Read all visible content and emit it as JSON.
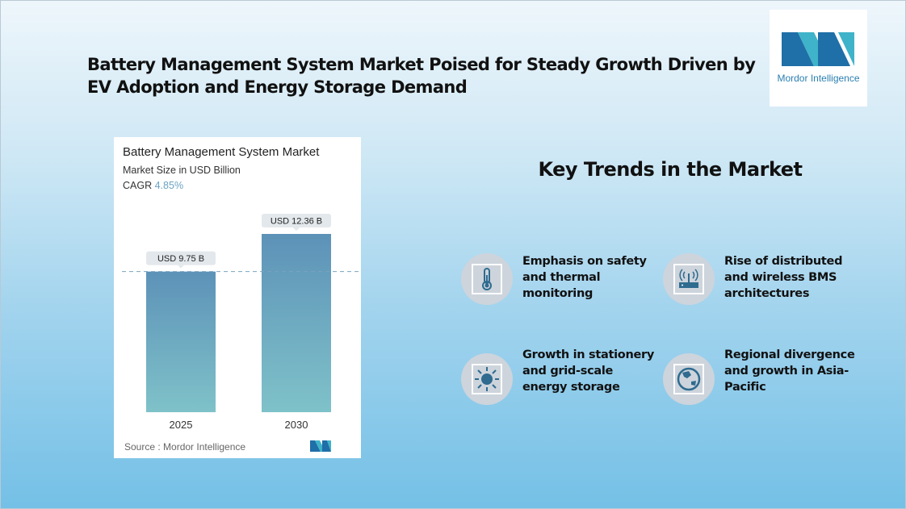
{
  "header": {
    "title": "Battery Management System Market Poised for Steady Growth Driven by EV Adoption and Energy Storage Demand"
  },
  "logo": {
    "text": "Mordor Intelligence",
    "colors": [
      "#1f6fa8",
      "#3fb3c9"
    ]
  },
  "chart_data": {
    "type": "bar",
    "title": "Battery Management System Market",
    "subtitle": "Market Size in USD Billion",
    "cagr_label": "CAGR",
    "cagr_value": "4.85%",
    "categories": [
      "2025",
      "2030"
    ],
    "values": [
      9.75,
      12.36
    ],
    "data_labels": [
      "USD 9.75 B",
      "USD 12.36 B"
    ],
    "ylim": [
      0,
      12.36
    ],
    "reference_line": "dashed at 2025 value",
    "bar_colors": {
      "top": "#5d92b8",
      "bottom": "#7fc2c9"
    },
    "source": "Source :  Mordor Intelligence"
  },
  "trends": {
    "title": "Key Trends in the Market",
    "items": [
      {
        "icon": "thermometer-icon",
        "text": "Emphasis on safety and thermal monitoring"
      },
      {
        "icon": "wireless-router-icon",
        "text": "Rise of distributed and wireless BMS architectures"
      },
      {
        "icon": "sun-icon",
        "text": "Growth in stationery and grid-scale energy storage"
      },
      {
        "icon": "globe-icon",
        "text": "Regional divergence and growth in Asia-Pacific"
      }
    ]
  }
}
